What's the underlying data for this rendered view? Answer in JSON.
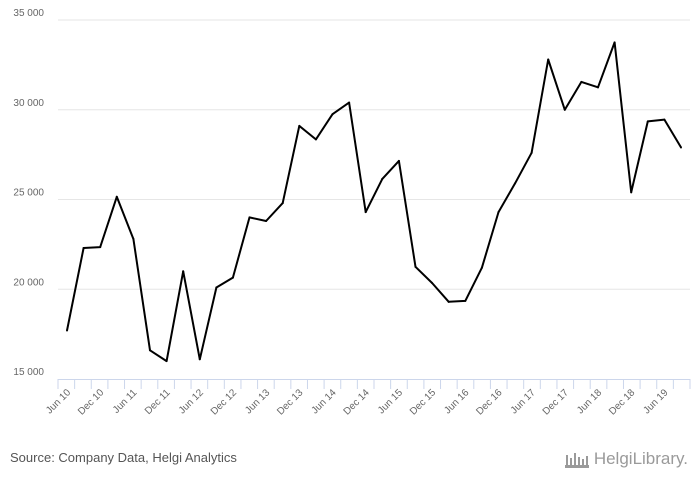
{
  "chart_data": {
    "type": "line",
    "title": "",
    "xlabel": "",
    "ylabel": "",
    "ylim": [
      15000,
      35000
    ],
    "yticks": [
      15000,
      20000,
      25000,
      30000,
      35000
    ],
    "ytick_labels": [
      "15 000",
      "20 000",
      "25 000",
      "30 000",
      "35 000"
    ],
    "grid": "horizontal",
    "legend": "none",
    "line_color": "#000000",
    "x": [
      "Jun 10",
      "Sep 10",
      "Dec 10",
      "Mar 11",
      "Jun 11",
      "Sep 11",
      "Dec 11",
      "Mar 12",
      "Jun 12",
      "Sep 12",
      "Dec 12",
      "Mar 13",
      "Jun 13",
      "Sep 13",
      "Dec 13",
      "Mar 14",
      "Jun 14",
      "Sep 14",
      "Dec 14",
      "Mar 15",
      "Jun 15",
      "Sep 15",
      "Dec 15",
      "Mar 16",
      "Jun 16",
      "Sep 16",
      "Dec 16",
      "Mar 17",
      "Jun 17",
      "Sep 17",
      "Dec 17",
      "Mar 18",
      "Jun 18",
      "Sep 18",
      "Dec 18",
      "Mar 19",
      "Jun 19",
      "Sep 19"
    ],
    "x_tick_labels": [
      "Jun 10",
      "Dec 10",
      "Jun 11",
      "Dec 11",
      "Jun 12",
      "Dec 12",
      "Jun 13",
      "Dec 13",
      "Jun 14",
      "Dec 14",
      "Jun 15",
      "Dec 15",
      "Jun 16",
      "Dec 16",
      "Jun 17",
      "Dec 17",
      "Jun 18",
      "Dec 18",
      "Jun 19"
    ],
    "series": [
      {
        "values": [
          17700,
          22300,
          22350,
          25150,
          22800,
          16600,
          16000,
          21000,
          16100,
          20100,
          20650,
          24000,
          23800,
          24800,
          29100,
          28350,
          29750,
          30400,
          24300,
          26150,
          27150,
          21250,
          20350,
          19300,
          19350,
          21200,
          24300,
          25900,
          27600,
          32800,
          30000,
          31550,
          31250,
          33750,
          25400,
          29350,
          29450,
          27900
        ]
      }
    ]
  },
  "footer": {
    "source": "Source: Company Data, Helgi Analytics",
    "logo_text": "HelgiLibrary."
  }
}
